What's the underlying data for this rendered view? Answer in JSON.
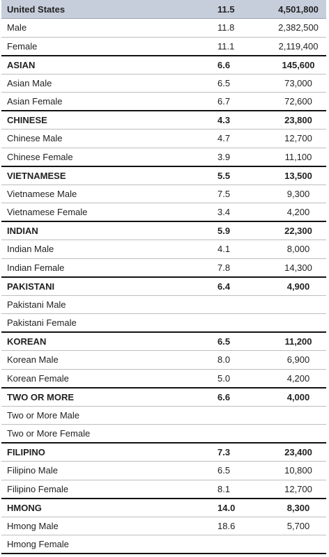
{
  "table": {
    "rows": [
      {
        "type": "header",
        "name": "United States",
        "rate": "11.5",
        "count": "4,501,800"
      },
      {
        "type": "sub",
        "name": "Male",
        "rate": "11.8",
        "count": "2,382,500"
      },
      {
        "type": "sub",
        "name": "Female",
        "rate": "11.1",
        "count": "2,119,400"
      },
      {
        "type": "group",
        "name": "ASIAN",
        "rate": "6.6",
        "count": "145,600"
      },
      {
        "type": "sub",
        "name": "Asian Male",
        "rate": "6.5",
        "count": "73,000"
      },
      {
        "type": "sub",
        "name": "Asian Female",
        "rate": "6.7",
        "count": "72,600"
      },
      {
        "type": "group",
        "name": "CHINESE",
        "rate": "4.3",
        "count": "23,800"
      },
      {
        "type": "sub",
        "name": "Chinese Male",
        "rate": "4.7",
        "count": "12,700"
      },
      {
        "type": "sub",
        "name": "Chinese Female",
        "rate": "3.9",
        "count": "11,100"
      },
      {
        "type": "group",
        "name": "VIETNAMESE",
        "rate": "5.5",
        "count": "13,500"
      },
      {
        "type": "sub",
        "name": "Vietnamese Male",
        "rate": "7.5",
        "count": "9,300"
      },
      {
        "type": "sub",
        "name": "Vietnamese Female",
        "rate": "3.4",
        "count": "4,200"
      },
      {
        "type": "group",
        "name": "INDIAN",
        "rate": "5.9",
        "count": "22,300"
      },
      {
        "type": "sub",
        "name": "Indian Male",
        "rate": "4.1",
        "count": "8,000"
      },
      {
        "type": "sub",
        "name": "Indian Female",
        "rate": "7.8",
        "count": "14,300"
      },
      {
        "type": "group",
        "name": "PAKISTANI",
        "rate": "6.4",
        "count": "4,900"
      },
      {
        "type": "sub",
        "name": "Pakistani Male",
        "rate": "",
        "count": ""
      },
      {
        "type": "sub",
        "name": "Pakistani Female",
        "rate": "",
        "count": ""
      },
      {
        "type": "group",
        "name": "KOREAN",
        "rate": "6.5",
        "count": "11,200"
      },
      {
        "type": "sub",
        "name": "Korean Male",
        "rate": "8.0",
        "count": "6,900"
      },
      {
        "type": "sub",
        "name": "Korean Female",
        "rate": "5.0",
        "count": "4,200"
      },
      {
        "type": "group",
        "name": "TWO OR MORE",
        "rate": "6.6",
        "count": "4,000"
      },
      {
        "type": "sub",
        "name": "Two or More Male",
        "rate": "",
        "count": ""
      },
      {
        "type": "sub",
        "name": "Two or More Female",
        "rate": "",
        "count": ""
      },
      {
        "type": "group",
        "name": "FILIPINO",
        "rate": "7.3",
        "count": "23,400"
      },
      {
        "type": "sub",
        "name": "Filipino Male",
        "rate": "6.5",
        "count": "10,800"
      },
      {
        "type": "sub",
        "name": "Filipino Female",
        "rate": "8.1",
        "count": "12,700"
      },
      {
        "type": "group",
        "name": "HMONG",
        "rate": "14.0",
        "count": "8,300"
      },
      {
        "type": "sub",
        "name": "Hmong Male",
        "rate": "18.6",
        "count": "5,700"
      },
      {
        "type": "sub",
        "name": "Hmong Female",
        "rate": "",
        "count": ""
      }
    ]
  }
}
